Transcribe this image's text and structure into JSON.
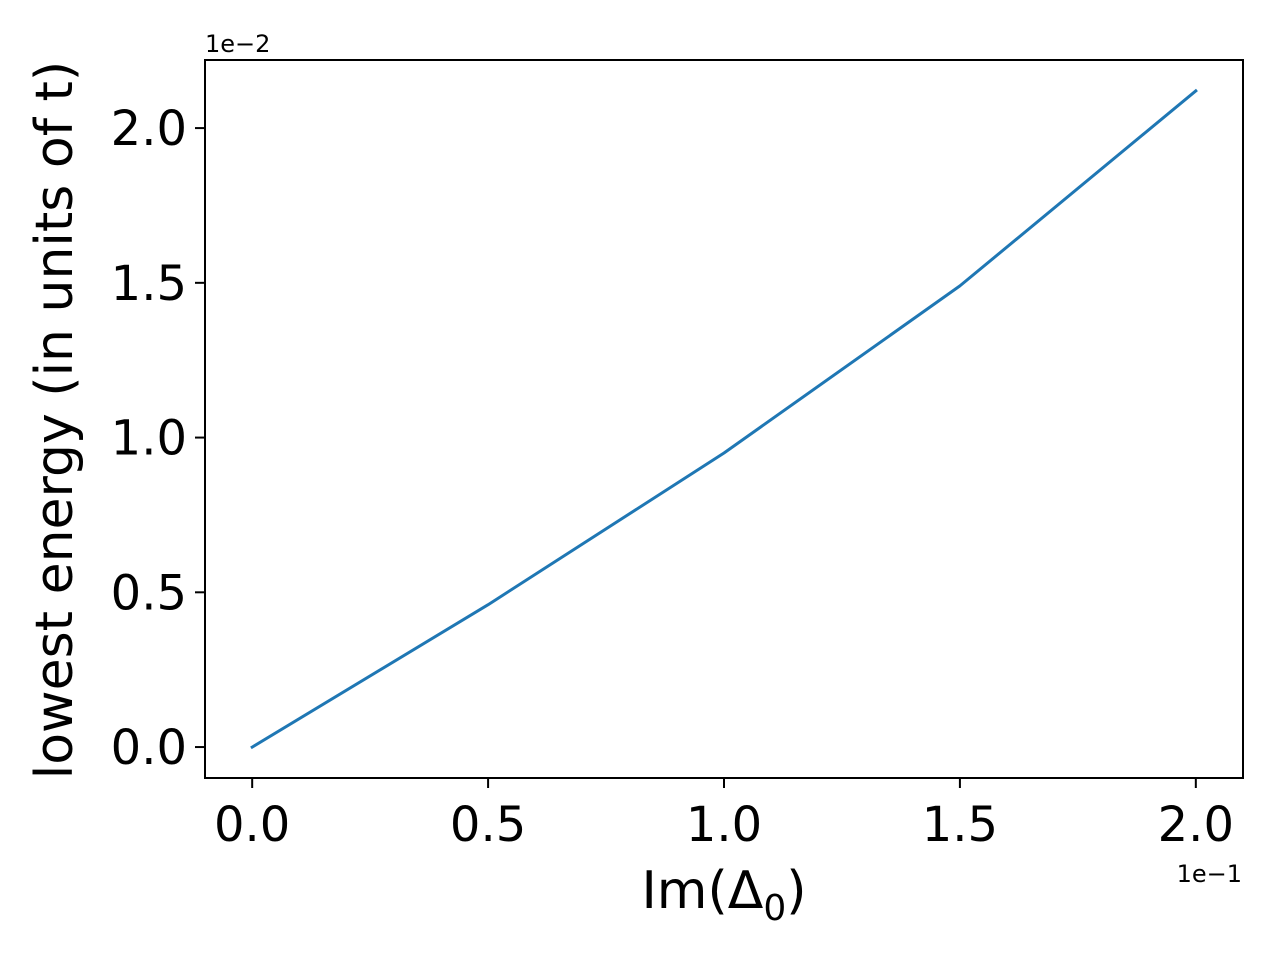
{
  "chart_data": {
    "type": "line",
    "xlabel": "Im(Δ",
    "xlabel_sub": "0",
    "xlabel_close": ")",
    "ylabel": "lowest energy (in units of t)",
    "x_offset_text": "1e−1",
    "y_offset_text": "1e−2",
    "xlim": [
      -0.01,
      0.21
    ],
    "ylim": [
      -0.001,
      0.0222
    ],
    "x_ticks": [
      0.0,
      0.05,
      0.1,
      0.15,
      0.2
    ],
    "x_tick_labels": [
      "0.0",
      "0.5",
      "1.0",
      "1.5",
      "2.0"
    ],
    "y_ticks": [
      0.0,
      0.005,
      0.01,
      0.015,
      0.02
    ],
    "y_tick_labels": [
      "0.0",
      "0.5",
      "1.0",
      "1.5",
      "2.0"
    ],
    "grid": false,
    "series": [
      {
        "color": "#1f77b4",
        "x": [
          0.0,
          0.05,
          0.1,
          0.15,
          0.2
        ],
        "y": [
          0.0,
          0.0046,
          0.0095,
          0.0149,
          0.0212
        ]
      }
    ]
  }
}
